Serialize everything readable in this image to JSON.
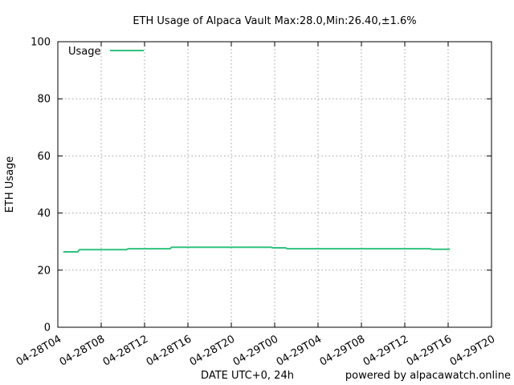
{
  "chart_data": {
    "type": "line",
    "title": "ETH Usage of Alpaca Vault Max:28.0,Min:26.40,±1.6%",
    "xlabel": "DATE UTC+0, 24h",
    "ylabel": "ETH Usage",
    "footer": "powered by alpacawatch.online",
    "ylim": [
      0,
      100
    ],
    "xlim": [
      "04-28T04",
      "04-29T20"
    ],
    "y_ticks": [
      "0",
      "20",
      "40",
      "60",
      "80",
      "100"
    ],
    "x_ticks": [
      "04-28T04",
      "04-28T08",
      "04-28T12",
      "04-28T16",
      "04-28T20",
      "04-29T00",
      "04-29T04",
      "04-29T08",
      "04-29T12",
      "04-29T16",
      "04-29T20"
    ],
    "grid": true,
    "legend_position": "top-left",
    "colors": {
      "series": "#2ec27e"
    },
    "series": [
      {
        "name": "Usage",
        "points": [
          [
            "04-28T04:30",
            26.4
          ],
          [
            "04-28T05:50",
            26.4
          ],
          [
            "04-28T06:00",
            27.2
          ],
          [
            "04-28T10:20",
            27.2
          ],
          [
            "04-28T10:30",
            27.5
          ],
          [
            "04-28T14:20",
            27.5
          ],
          [
            "04-28T14:30",
            28.0
          ],
          [
            "04-28T23:40",
            28.0
          ],
          [
            "04-28T23:50",
            27.8
          ],
          [
            "04-29T01:00",
            27.8
          ],
          [
            "04-29T01:10",
            27.5
          ],
          [
            "04-29T14:20",
            27.5
          ],
          [
            "04-29T14:30",
            27.3
          ],
          [
            "04-29T16:10",
            27.3
          ]
        ]
      }
    ]
  }
}
